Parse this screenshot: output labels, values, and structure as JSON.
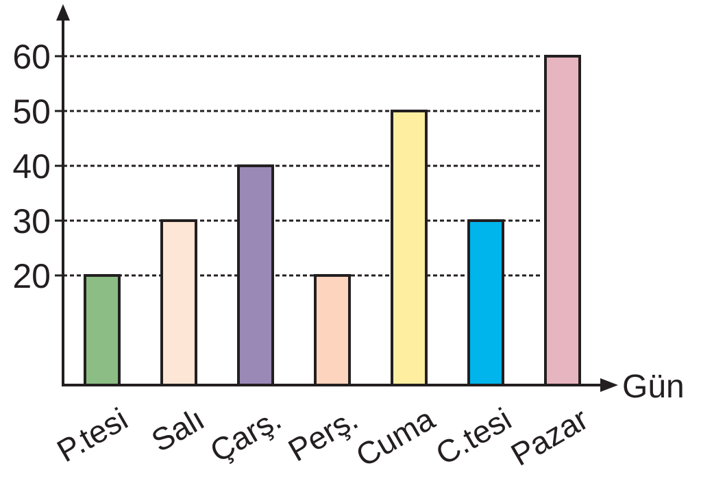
{
  "chart_data": {
    "type": "bar",
    "categories": [
      "P.tesi",
      "Salı",
      "Çarş.",
      "Perş.",
      "Cuma",
      "C.tesi",
      "Pazar"
    ],
    "values": [
      20,
      30,
      40,
      20,
      50,
      30,
      60
    ],
    "bar_colors": [
      "#8bbd84",
      "#fde6d5",
      "#9a88b6",
      "#fdd4bd",
      "#fdeea0",
      "#00b4ec",
      "#e7b5bf"
    ],
    "xlabel": "Gün",
    "ylabel": "",
    "yticks": [
      20,
      30,
      40,
      50,
      60
    ],
    "ylim": [
      0,
      60
    ],
    "grid": "dashed horizontal lines at tick values",
    "legend": "none"
  }
}
